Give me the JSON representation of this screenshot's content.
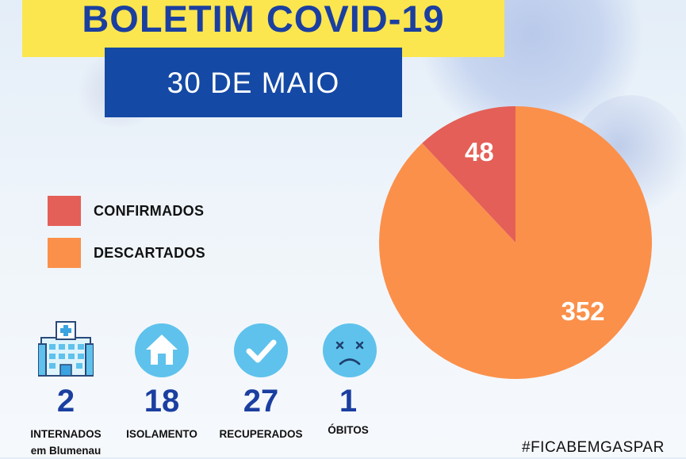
{
  "header": {
    "title": "BOLETIM COVID-19",
    "date": "30 DE MAIO"
  },
  "colors": {
    "title_bg": "#fbe64f",
    "title_text": "#1b3fa0",
    "date_bg": "#1449a5",
    "confirmed": "#e45f57",
    "discarded": "#fb904b",
    "icon_circle": "#5ec2ec"
  },
  "chart_data": {
    "type": "pie",
    "title": "",
    "slices": [
      {
        "label": "CONFIRMADOS",
        "value": 48,
        "color": "#e45f57"
      },
      {
        "label": "DESCARTADOS",
        "value": 352,
        "color": "#fb904b"
      }
    ],
    "legend": {
      "position": "left",
      "entries": [
        "CONFIRMADOS",
        "DESCARTADOS"
      ]
    }
  },
  "stats": [
    {
      "icon": "hospital-icon",
      "value": "2",
      "label_line1": "INTERNADOS",
      "label_line2": "em Blumenau"
    },
    {
      "icon": "house-icon",
      "value": "18",
      "label_line1": "ISOLAMENTO",
      "label_line2": ""
    },
    {
      "icon": "checkmark-icon",
      "value": "27",
      "label_line1": "RECUPERADOS",
      "label_line2": ""
    },
    {
      "icon": "sad-face-icon",
      "value": "1",
      "label_line1": "ÓBITOS",
      "label_line2": ""
    }
  ],
  "footer": {
    "hashtag": "#FICABEMGASPAR"
  }
}
